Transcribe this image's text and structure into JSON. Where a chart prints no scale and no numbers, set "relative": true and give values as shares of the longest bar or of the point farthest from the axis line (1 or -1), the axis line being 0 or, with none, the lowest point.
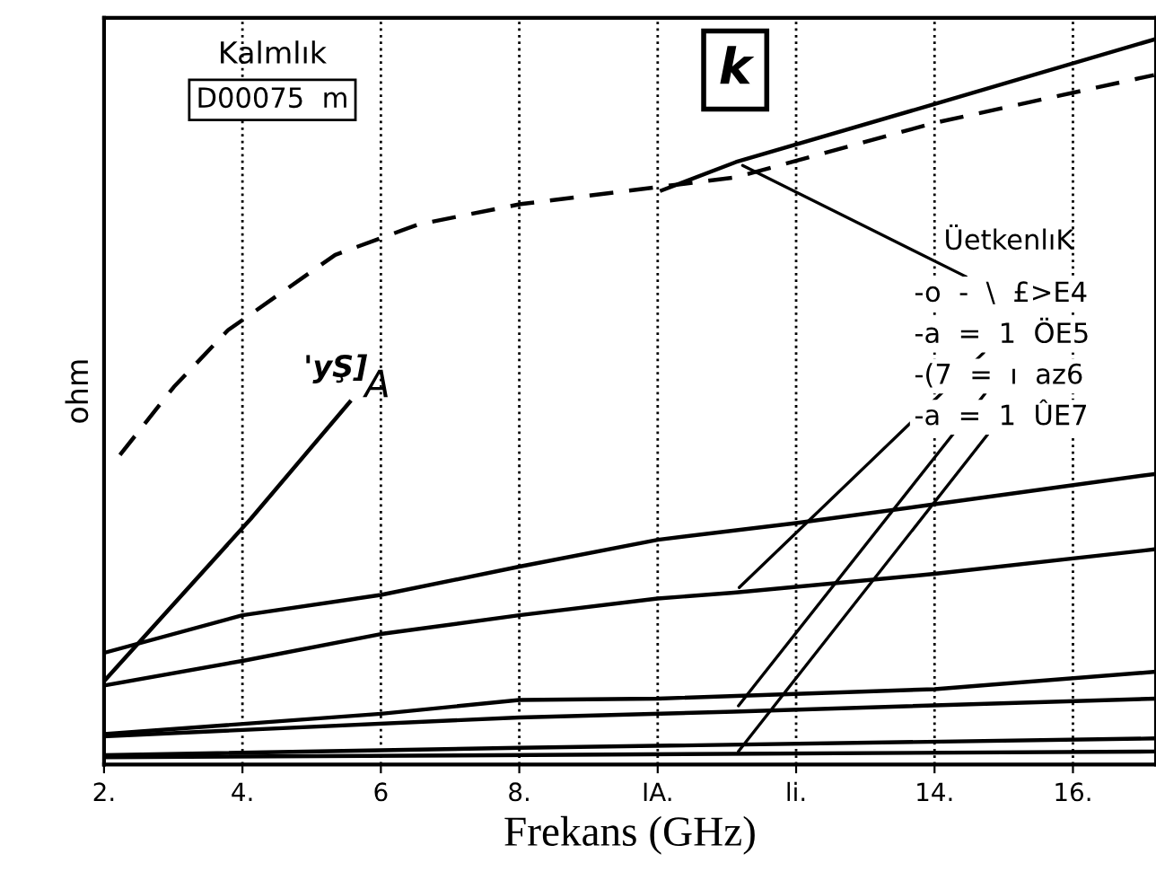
{
  "chart_data": {
    "type": "line",
    "relative": true,
    "xlabel": "Frekans (GHz)",
    "ylabel": "ohm",
    "xlim": [
      2,
      17.2
    ],
    "xticks": [
      {
        "value": 2,
        "label": "2."
      },
      {
        "value": 4,
        "label": "4."
      },
      {
        "value": 6,
        "label": "6"
      },
      {
        "value": 8,
        "label": "8."
      },
      {
        "value": 10,
        "label": "IA."
      },
      {
        "value": 12,
        "label": "li."
      },
      {
        "value": 14,
        "label": "14."
      },
      {
        "value": 16,
        "label": "16."
      }
    ],
    "grid": "x",
    "legend": false,
    "marker": "none",
    "series": [
      {
        "color": "#000000",
        "line_style": "solid",
        "x": [
          10.06,
          11.13,
          14,
          17.17
        ],
        "values": [
          0.792,
          0.831,
          0.911,
          1.0
        ]
      },
      {
        "color": "#000000",
        "line_style": "dashed",
        "x": [
          2.23,
          3.01,
          3.79,
          5.34,
          6.54,
          8.02,
          11.13,
          14,
          17.17
        ],
        "values": [
          0.427,
          0.521,
          0.599,
          0.703,
          0.745,
          0.773,
          0.81,
          0.885,
          0.951
        ]
      },
      {
        "color": "#000000",
        "line_style": "solid",
        "x": [
          2,
          4.12,
          5.55
        ],
        "values": [
          0.115,
          0.339,
          0.5
        ]
      },
      {
        "color": "#000000",
        "line_style": "solid",
        "x": [
          2,
          4,
          6,
          8,
          10,
          12,
          14,
          17.2
        ],
        "values": [
          0.154,
          0.206,
          0.234,
          0.273,
          0.31,
          0.333,
          0.359,
          0.401
        ]
      },
      {
        "color": "#000000",
        "line_style": "solid",
        "x": [
          2,
          4,
          6,
          8,
          10,
          11.1,
          14,
          17.2
        ],
        "values": [
          0.109,
          0.143,
          0.18,
          0.206,
          0.229,
          0.237,
          0.263,
          0.297
        ]
      },
      {
        "color": "#000000",
        "line_style": "solid",
        "x": [
          2,
          6,
          8,
          10,
          14,
          17.2
        ],
        "values": [
          0.042,
          0.07,
          0.089,
          0.091,
          0.104,
          0.128
        ]
      },
      {
        "color": "#000000",
        "line_style": "solid",
        "x": [
          2,
          8,
          11.1,
          17.2
        ],
        "values": [
          0.039,
          0.065,
          0.073,
          0.091
        ]
      },
      {
        "color": "#000000",
        "line_style": "solid",
        "x": [
          2,
          8,
          17.2
        ],
        "values": [
          0.013,
          0.023,
          0.036
        ]
      },
      {
        "color": "#000000",
        "line_style": "solid",
        "x": [
          2,
          17.2
        ],
        "values": [
          0.01,
          0.018
        ]
      }
    ],
    "annotations": [
      "Kalmlık",
      "D00075  m",
      "k",
      "ÜetkenlıK",
      "'yŞ]",
      {
        "text": "A",
        "x": 5.55,
        "y": 0.5
      },
      {
        "text": "-o  -  \\  £>E4",
        "x": 11.13,
        "y": 0.831
      },
      {
        "text": "-a  =  1  ÖE5",
        "x": 11.1,
        "y": 0.237
      },
      {
        "text": "-(7  =  ı  az6",
        "x": 11.1,
        "y": 0.073
      },
      {
        "text": "-a  =  1  ÛE7",
        "x": 11.1,
        "y": 0.01
      }
    ]
  }
}
